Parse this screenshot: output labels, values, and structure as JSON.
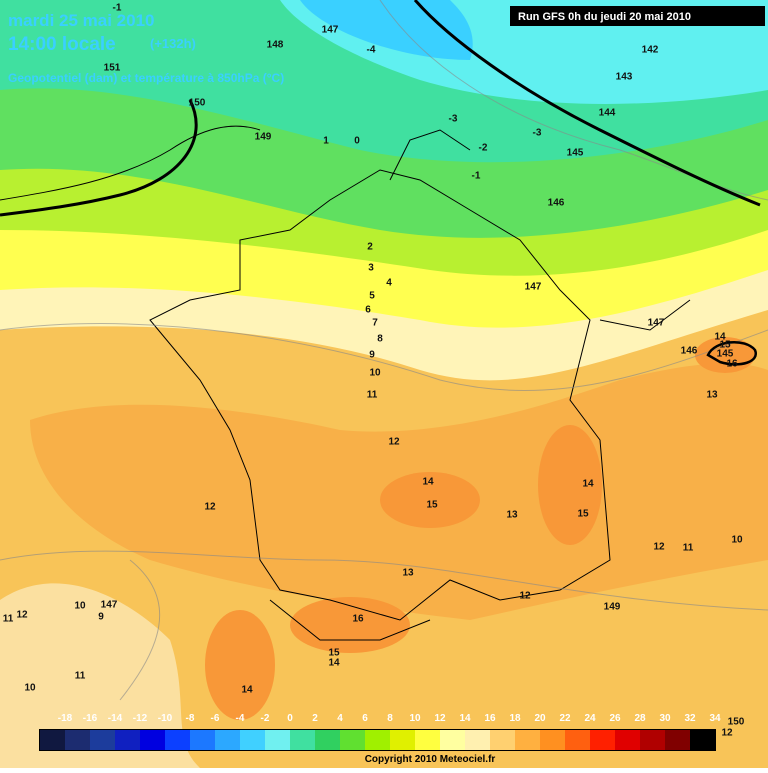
{
  "header": {
    "date": "mardi 25 mai 2010",
    "time": "14:00 locale",
    "lead": "(+132h)",
    "description": "Geopotentiel (dam) et température à 850hPa (°C)"
  },
  "run": "Run GFS 0h du jeudi 20 mai 2010",
  "legend": {
    "values": [
      -18,
      -16,
      -14,
      -12,
      -10,
      -8,
      -6,
      -4,
      -2,
      0,
      2,
      4,
      6,
      8,
      10,
      12,
      14,
      16,
      18,
      20,
      22,
      24,
      26,
      28,
      30,
      32,
      34
    ],
    "colors": [
      "#101840",
      "#1c2c70",
      "#1c3c9c",
      "#1020c0",
      "#0000e0",
      "#0c40ff",
      "#1c78ff",
      "#2ca8ff",
      "#40d0ff",
      "#70f0f0",
      "#40e0a0",
      "#30d060",
      "#60e030",
      "#a0f000",
      "#e0f000",
      "#ffff40",
      "#ffffa0",
      "#fff0b0",
      "#ffd070",
      "#ffb040",
      "#ff9020",
      "#ff6010",
      "#ff2000",
      "#e00000",
      "#b00000",
      "#800000",
      "#000000"
    ]
  },
  "copyright": "Copyright 2010 Meteociel.fr",
  "geopotential_labels": [
    147,
    148,
    151,
    150,
    149,
    142,
    143,
    144,
    145,
    146,
    147,
    147,
    146,
    145,
    149,
    147,
    150
  ],
  "temperature_labels": [
    -1,
    -4,
    -3,
    -3,
    -2,
    -1,
    1,
    0,
    2,
    3,
    4,
    5,
    6,
    7,
    8,
    9,
    10,
    11,
    12,
    14,
    15,
    13,
    14,
    15,
    12,
    12,
    11,
    10,
    13,
    12,
    16,
    15,
    14,
    14,
    12,
    11,
    10,
    9,
    11,
    10,
    13,
    14,
    15,
    16,
    12
  ]
}
